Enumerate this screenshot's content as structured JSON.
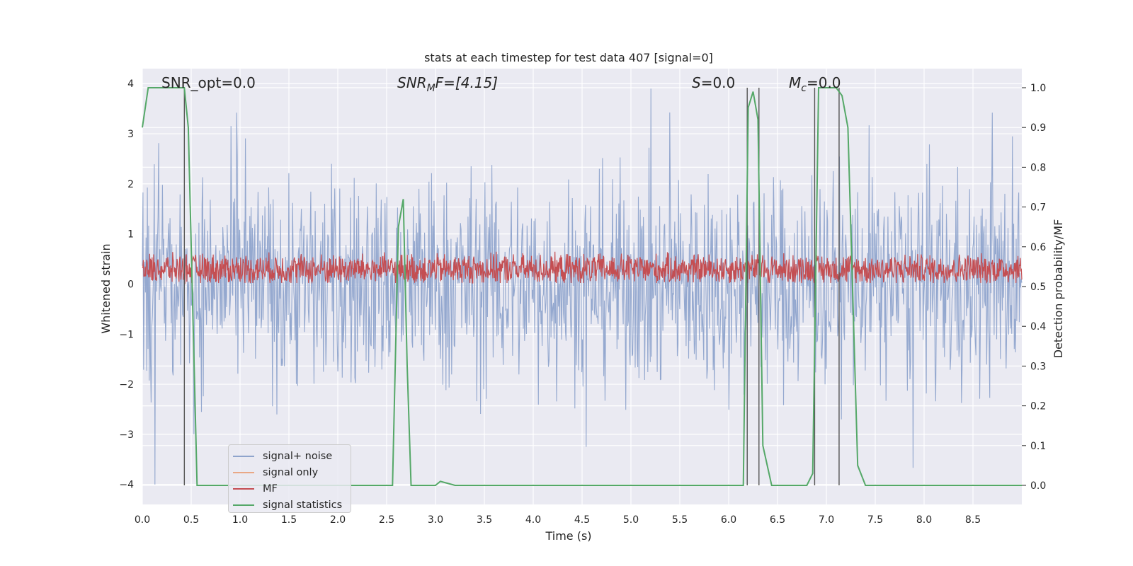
{
  "chart_data": {
    "type": "line",
    "title": "stats at each timestep for test data 407 [signal=0]",
    "xlabel": "Time (s)",
    "ylabel": "Whitened strain",
    "y2label": "Detection probability/MF",
    "xlim": [
      0.0,
      9.0
    ],
    "ylim": [
      -4.4,
      4.3
    ],
    "y2lim": [
      -0.048,
      1.048
    ],
    "xticks": [
      "0.0",
      "0.5",
      "1.0",
      "1.5",
      "2.0",
      "2.5",
      "3.0",
      "3.5",
      "4.0",
      "4.5",
      "5.0",
      "5.5",
      "6.0",
      "6.5",
      "7.0",
      "7.5",
      "8.0",
      "8.5"
    ],
    "yticks": [
      "−4",
      "−3",
      "−2",
      "−1",
      "0",
      "1",
      "2",
      "3",
      "4"
    ],
    "y2ticks": [
      "0.0",
      "0.1",
      "0.2",
      "0.3",
      "0.4",
      "0.5",
      "0.6",
      "0.7",
      "0.8",
      "0.9",
      "1.0"
    ],
    "annotations": {
      "snr_opt": "SNR_opt=0.0",
      "snr_mf_base": "SNR",
      "snr_mf_sub": "M",
      "snr_mf_rest": "F=[4.15]",
      "s_base": "S",
      "s_rest": "=0.0",
      "mc_base": "M",
      "mc_sub": "c",
      "mc_rest": "=0.0"
    },
    "legend": {
      "position": "lower-left",
      "entries": [
        "signal+ noise",
        "signal only",
        "MF",
        "signal statistics"
      ]
    },
    "series": [
      {
        "name": "signal+ noise",
        "color": "#4c72b0",
        "description_values": "noise",
        "spread": 1.5
      },
      {
        "name": "signal only",
        "color": "#dd8452",
        "values": [
          0.0,
          0.0
        ]
      },
      {
        "name": "MF",
        "color": "#c44e52",
        "center": 0.3,
        "spread": 0.35
      },
      {
        "name": "signal statistics",
        "color": "#55a868",
        "x": [
          0.0,
          0.06,
          0.43,
          0.47,
          0.52,
          0.56,
          0.6,
          2.56,
          2.62,
          2.67,
          2.71,
          2.75,
          3.0,
          3.05,
          3.2,
          6.15,
          6.2,
          6.25,
          6.3,
          6.35,
          6.44,
          6.8,
          6.86,
          6.92,
          7.1,
          7.16,
          7.22,
          7.32,
          7.4,
          9.0
        ],
        "y": [
          0.9,
          1.0,
          1.0,
          0.9,
          0.4,
          0.0,
          0.0,
          0.0,
          0.65,
          0.72,
          0.3,
          0.0,
          0.0,
          0.01,
          0.0,
          0.0,
          0.95,
          0.99,
          0.92,
          0.1,
          0.0,
          0.0,
          0.03,
          1.0,
          1.0,
          0.98,
          0.9,
          0.05,
          0.0,
          0.0
        ]
      }
    ],
    "vlines_x": [
      0.43,
      6.19,
      6.31,
      6.88,
      7.13
    ]
  }
}
